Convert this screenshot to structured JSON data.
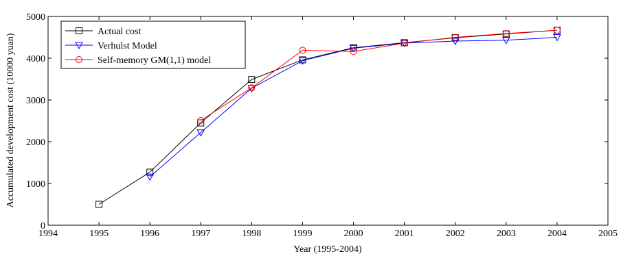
{
  "chart_data": {
    "type": "line",
    "title": "",
    "xlabel": "Year (1995-2004)",
    "ylabel": "Accumulated development cost (10000 yuan)",
    "xlim": [
      1994,
      2005
    ],
    "ylim": [
      0,
      5000
    ],
    "xticks": [
      1994,
      1995,
      1996,
      1997,
      1998,
      1999,
      2000,
      2001,
      2002,
      2003,
      2004,
      2005
    ],
    "yticks": [
      0,
      1000,
      2000,
      3000,
      4000,
      5000
    ],
    "legend_position": "top-left",
    "grid": false,
    "series": [
      {
        "name": "Actual cost",
        "color": "#000000",
        "marker": "square",
        "x": [
          1995,
          1996,
          1997,
          1998,
          1999,
          2000,
          2001,
          2002,
          2003,
          2004
        ],
        "y": [
          500,
          1270,
          2450,
          3490,
          3960,
          4250,
          4370,
          4490,
          4580,
          4670
        ]
      },
      {
        "name": "Verhulst Model",
        "color": "#0000ff",
        "marker": "triangle-down",
        "x": [
          1996,
          1997,
          1998,
          1999,
          2000,
          2001,
          2002,
          2003,
          2004
        ],
        "y": [
          1160,
          2220,
          3280,
          3940,
          4240,
          4360,
          4410,
          4430,
          4500
        ]
      },
      {
        "name": "Self-memory GM(1,1) model",
        "color": "#ff0000",
        "marker": "circle",
        "x": [
          1997,
          1998,
          1999,
          2000,
          2001,
          2002,
          2003,
          2004
        ],
        "y": [
          2510,
          3290,
          4190,
          4160,
          4360,
          4500,
          4590,
          4670
        ]
      }
    ]
  }
}
